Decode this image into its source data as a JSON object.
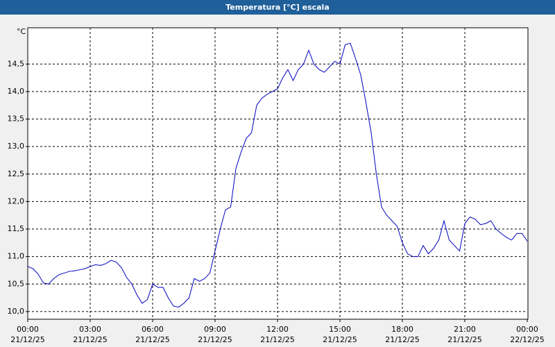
{
  "chart_data": {
    "type": "line",
    "title": "Temperatura [°C] escala",
    "y_unit": "°C",
    "x": [
      0,
      0.25,
      0.5,
      0.75,
      1,
      1.25,
      1.5,
      1.75,
      2,
      2.25,
      2.5,
      2.75,
      3,
      3.25,
      3.5,
      3.75,
      4,
      4.25,
      4.5,
      4.75,
      5,
      5.25,
      5.5,
      5.75,
      6,
      6.25,
      6.5,
      6.75,
      7,
      7.25,
      7.5,
      7.75,
      8,
      8.25,
      8.5,
      8.75,
      9,
      9.25,
      9.5,
      9.75,
      10,
      10.25,
      10.5,
      10.75,
      11,
      11.25,
      11.5,
      11.75,
      12,
      12.25,
      12.5,
      12.75,
      13,
      13.25,
      13.5,
      13.75,
      14,
      14.25,
      14.5,
      14.75,
      15,
      15.25,
      15.5,
      15.75,
      16,
      16.25,
      16.5,
      16.75,
      17,
      17.25,
      17.5,
      17.75,
      18,
      18.25,
      18.5,
      18.75,
      19,
      19.25,
      19.5,
      19.75,
      20,
      20.25,
      20.5,
      20.75,
      21,
      21.25,
      21.5,
      21.75,
      22,
      22.25,
      22.5,
      22.75,
      23,
      23.25,
      23.5,
      23.75,
      24
    ],
    "series": [
      {
        "name": "Temperatura",
        "color": "#0000c0",
        "values": [
          10.82,
          10.78,
          10.68,
          10.52,
          10.5,
          10.6,
          10.67,
          10.7,
          10.73,
          10.74,
          10.76,
          10.78,
          10.82,
          10.85,
          10.84,
          10.87,
          10.93,
          10.9,
          10.8,
          10.62,
          10.5,
          10.3,
          10.15,
          10.22,
          10.5,
          10.44,
          10.44,
          10.25,
          10.1,
          10.08,
          10.15,
          10.25,
          10.6,
          10.55,
          10.6,
          10.7,
          11.1,
          11.5,
          11.85,
          11.9,
          12.6,
          12.9,
          13.15,
          13.25,
          13.75,
          13.88,
          13.95,
          14.0,
          14.05,
          14.25,
          14.4,
          14.2,
          14.4,
          14.5,
          14.75,
          14.5,
          14.4,
          14.35,
          14.45,
          14.55,
          14.5,
          14.85,
          14.88,
          14.6,
          14.3,
          13.8,
          13.25,
          12.5,
          11.9,
          11.75,
          11.65,
          11.55,
          11.25,
          11.05,
          11.0,
          11.0,
          11.2,
          11.05,
          11.15,
          11.3,
          11.65,
          11.3,
          11.2,
          11.1,
          11.6,
          11.72,
          11.68,
          11.58,
          11.6,
          11.65,
          11.5,
          11.42,
          11.35,
          11.3,
          11.42,
          11.42,
          11.28
        ]
      }
    ],
    "xlim": [
      0,
      24
    ],
    "xticks": [
      {
        "value": 0,
        "label": "00:00",
        "date": "21/12/25"
      },
      {
        "value": 3,
        "label": "03:00",
        "date": "21/12/25"
      },
      {
        "value": 6,
        "label": "06:00",
        "date": "21/12/25"
      },
      {
        "value": 9,
        "label": "09:00",
        "date": "21/12/25"
      },
      {
        "value": 12,
        "label": "12:00",
        "date": "21/12/25"
      },
      {
        "value": 15,
        "label": "15:00",
        "date": "21/12/25"
      },
      {
        "value": 18,
        "label": "18:00",
        "date": "21/12/25"
      },
      {
        "value": 21,
        "label": "21:00",
        "date": "21/12/25"
      },
      {
        "value": 24,
        "label": "00:00",
        "date": "22/12/25"
      }
    ],
    "ylim": [
      9.86,
      15.16
    ],
    "yticks": [
      {
        "value": 10,
        "label": "10,0"
      },
      {
        "value": 10.5,
        "label": "10,5"
      },
      {
        "value": 11,
        "label": "11,0"
      },
      {
        "value": 11.5,
        "label": "11,5"
      },
      {
        "value": 12,
        "label": "12,0"
      },
      {
        "value": 12.5,
        "label": "12,5"
      },
      {
        "value": 13,
        "label": "13,0"
      },
      {
        "value": 13.5,
        "label": "13,5"
      },
      {
        "value": 14,
        "label": "14,0"
      },
      {
        "value": 14.5,
        "label": "14,5"
      }
    ],
    "grid": true
  }
}
